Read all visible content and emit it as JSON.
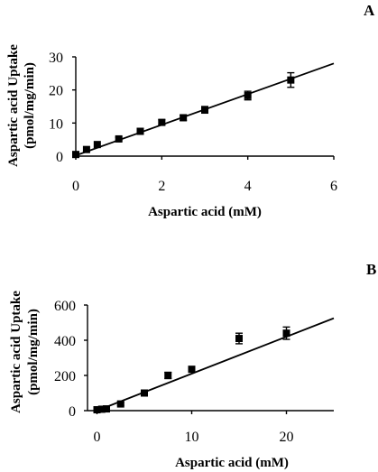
{
  "chart_data": [
    {
      "type": "scatter",
      "panel": "A",
      "xlabel": "Aspartic acid (mM)",
      "ylabel": [
        "Aspartic acid Uptake",
        "(pmol/mg/min)"
      ],
      "xlim": [
        0,
        6
      ],
      "ylim": [
        0,
        30
      ],
      "xticks": [
        0,
        2,
        4,
        6
      ],
      "yticks": [
        0,
        10,
        20,
        30
      ],
      "points": [
        {
          "x": 0,
          "y": 0.5,
          "err": 0.3
        },
        {
          "x": 0.25,
          "y": 2.0,
          "err": 0.3
        },
        {
          "x": 0.5,
          "y": 3.5,
          "err": 0.4
        },
        {
          "x": 1.0,
          "y": 5.2,
          "err": 0.5
        },
        {
          "x": 1.5,
          "y": 7.5,
          "err": 0.6
        },
        {
          "x": 2.0,
          "y": 10.2,
          "err": 0.8
        },
        {
          "x": 2.5,
          "y": 11.6,
          "err": 0.8
        },
        {
          "x": 3.0,
          "y": 14.0,
          "err": 1.0
        },
        {
          "x": 4.0,
          "y": 18.3,
          "err": 1.3
        },
        {
          "x": 5.0,
          "y": 23.0,
          "err": 2.2
        }
      ],
      "fit": {
        "x": [
          0,
          6
        ],
        "y": [
          0.2,
          28.0
        ]
      },
      "grid": false,
      "legend": "none"
    },
    {
      "type": "scatter",
      "panel": "B",
      "xlabel": "Aspartic acid (mM)",
      "ylabel": [
        "Aspartic acid Uptake",
        "(pmol/mg/min)"
      ],
      "xlim": [
        -1,
        25
      ],
      "ylim": [
        0,
        600
      ],
      "xticks": [
        0,
        10,
        20
      ],
      "yticks": [
        0,
        200,
        400,
        600
      ],
      "points": [
        {
          "x": 0,
          "y": 5,
          "err": 5
        },
        {
          "x": 0.5,
          "y": 8,
          "err": 5
        },
        {
          "x": 1.0,
          "y": 10,
          "err": 5
        },
        {
          "x": 2.5,
          "y": 38,
          "err": 8
        },
        {
          "x": 5.0,
          "y": 100,
          "err": 10
        },
        {
          "x": 7.5,
          "y": 200,
          "err": 18
        },
        {
          "x": 10.0,
          "y": 235,
          "err": 15
        },
        {
          "x": 15.0,
          "y": 410,
          "err": 30
        },
        {
          "x": 20.0,
          "y": 440,
          "err": 35
        }
      ],
      "fit": {
        "x": [
          0,
          25
        ],
        "y": [
          0,
          525
        ]
      },
      "grid": false,
      "legend": "none"
    }
  ]
}
